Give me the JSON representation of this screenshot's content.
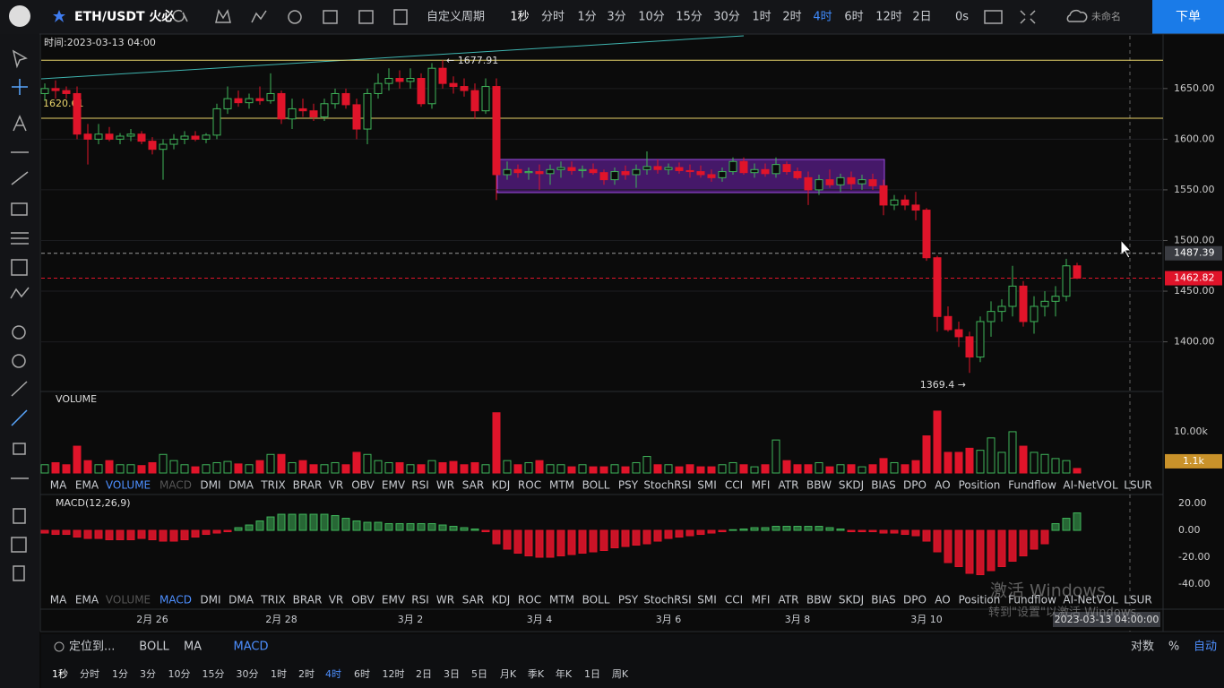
{
  "header": {
    "symbol": "ETH/USDT 火必",
    "custom": "自定义周期",
    "periods": [
      "1秒",
      "分时",
      "1分",
      "3分",
      "10分",
      "15分",
      "30分",
      "1时",
      "2时",
      "4时",
      "6时",
      "12时",
      "2日"
    ],
    "active": 9,
    "zero": "0s",
    "workspace": "未命名",
    "order": "下单"
  },
  "chart_data": {
    "type": "candlestick",
    "time_label": "时间:2023-03-13 04:00",
    "ylim": [
      1351,
      1702
    ],
    "yticks": [
      {
        "value": 1650,
        "label": "1650.00"
      },
      {
        "value": 1600,
        "label": "1600.00"
      },
      {
        "value": 1550,
        "label": "1550.00"
      },
      {
        "value": 1500,
        "label": "1500.00"
      },
      {
        "value": 1450,
        "label": "1450.00"
      },
      {
        "value": 1400,
        "label": "1400.00"
      }
    ],
    "levels": [
      {
        "value": 1677.91,
        "color": "#e8d36a"
      },
      {
        "value": 1620.61,
        "color": "#e8d36a"
      },
      {
        "value": 1487.39,
        "color": "#9a9a9a"
      },
      {
        "value": 1462.82,
        "color": "#e0142a"
      }
    ],
    "annotations": [
      {
        "value": 1677.91,
        "label": "← 1677.91"
      },
      {
        "value": 1369.4,
        "label": "1369.4 →"
      }
    ],
    "up_color": "#3fb55a",
    "down_color": "#e0142a",
    "candles": [
      [
        1645,
        1655,
        1638,
        1650
      ],
      [
        1650,
        1658,
        1640,
        1648
      ],
      [
        1648,
        1652,
        1640,
        1645
      ],
      [
        1645,
        1652,
        1600,
        1605
      ],
      [
        1605,
        1615,
        1575,
        1600
      ],
      [
        1600,
        1615,
        1595,
        1605
      ],
      [
        1605,
        1612,
        1598,
        1600
      ],
      [
        1600,
        1606,
        1595,
        1603
      ],
      [
        1603,
        1610,
        1598,
        1605
      ],
      [
        1605,
        1608,
        1595,
        1598
      ],
      [
        1598,
        1602,
        1585,
        1590
      ],
      [
        1590,
        1600,
        1560,
        1595
      ],
      [
        1595,
        1605,
        1590,
        1600
      ],
      [
        1600,
        1608,
        1595,
        1603
      ],
      [
        1603,
        1608,
        1598,
        1600
      ],
      [
        1600,
        1606,
        1596,
        1604
      ],
      [
        1604,
        1635,
        1600,
        1630
      ],
      [
        1630,
        1652,
        1625,
        1640
      ],
      [
        1640,
        1648,
        1632,
        1636
      ],
      [
        1636,
        1645,
        1630,
        1640
      ],
      [
        1640,
        1652,
        1634,
        1638
      ],
      [
        1638,
        1665,
        1635,
        1645
      ],
      [
        1645,
        1648,
        1615,
        1620
      ],
      [
        1620,
        1640,
        1610,
        1630
      ],
      [
        1630,
        1640,
        1622,
        1628
      ],
      [
        1628,
        1635,
        1618,
        1622
      ],
      [
        1622,
        1640,
        1618,
        1635
      ],
      [
        1635,
        1650,
        1630,
        1645
      ],
      [
        1645,
        1650,
        1630,
        1634
      ],
      [
        1634,
        1640,
        1600,
        1610
      ],
      [
        1610,
        1650,
        1595,
        1645
      ],
      [
        1645,
        1665,
        1640,
        1655
      ],
      [
        1655,
        1670,
        1648,
        1660
      ],
      [
        1660,
        1668,
        1650,
        1657
      ],
      [
        1657,
        1670,
        1650,
        1660
      ],
      [
        1660,
        1665,
        1632,
        1635
      ],
      [
        1635,
        1675,
        1630,
        1670
      ],
      [
        1670,
        1677.91,
        1650,
        1655
      ],
      [
        1655,
        1662,
        1645,
        1652
      ],
      [
        1652,
        1660,
        1642,
        1648
      ],
      [
        1648,
        1655,
        1620,
        1628
      ],
      [
        1628,
        1660,
        1625,
        1652
      ],
      [
        1652,
        1660,
        1540,
        1565
      ],
      [
        1565,
        1578,
        1560,
        1570
      ],
      [
        1570,
        1575,
        1562,
        1567
      ],
      [
        1567,
        1572,
        1560,
        1568
      ],
      [
        1568,
        1575,
        1550,
        1566
      ],
      [
        1566,
        1575,
        1555,
        1570
      ],
      [
        1570,
        1578,
        1562,
        1572
      ],
      [
        1572,
        1578,
        1565,
        1569
      ],
      [
        1569,
        1574,
        1562,
        1570
      ],
      [
        1570,
        1576,
        1565,
        1567
      ],
      [
        1567,
        1570,
        1555,
        1560
      ],
      [
        1560,
        1572,
        1555,
        1568
      ],
      [
        1568,
        1574,
        1560,
        1565
      ],
      [
        1565,
        1575,
        1552,
        1570
      ],
      [
        1570,
        1588,
        1565,
        1573
      ],
      [
        1573,
        1580,
        1566,
        1570
      ],
      [
        1570,
        1576,
        1565,
        1572
      ],
      [
        1572,
        1577,
        1566,
        1569
      ],
      [
        1569,
        1575,
        1562,
        1568
      ],
      [
        1568,
        1574,
        1562,
        1565
      ],
      [
        1565,
        1570,
        1558,
        1562
      ],
      [
        1562,
        1572,
        1558,
        1568
      ],
      [
        1568,
        1582,
        1565,
        1578
      ],
      [
        1578,
        1582,
        1565,
        1567
      ],
      [
        1567,
        1576,
        1562,
        1570
      ],
      [
        1570,
        1576,
        1563,
        1566
      ],
      [
        1566,
        1582,
        1562,
        1575
      ],
      [
        1575,
        1578,
        1565,
        1568
      ],
      [
        1568,
        1572,
        1560,
        1562
      ],
      [
        1562,
        1568,
        1535,
        1550
      ],
      [
        1550,
        1565,
        1545,
        1560
      ],
      [
        1560,
        1570,
        1552,
        1555
      ],
      [
        1555,
        1566,
        1548,
        1562
      ],
      [
        1562,
        1568,
        1550,
        1556
      ],
      [
        1556,
        1565,
        1550,
        1560
      ],
      [
        1560,
        1566,
        1550,
        1554
      ],
      [
        1554,
        1560,
        1525,
        1535
      ],
      [
        1535,
        1545,
        1530,
        1540
      ],
      [
        1540,
        1545,
        1530,
        1535
      ],
      [
        1535,
        1548,
        1520,
        1530
      ],
      [
        1530,
        1532,
        1480,
        1483
      ],
      [
        1483,
        1485,
        1410,
        1425
      ],
      [
        1425,
        1435,
        1410,
        1412
      ],
      [
        1412,
        1420,
        1395,
        1405
      ],
      [
        1405,
        1410,
        1369.4,
        1385
      ],
      [
        1385,
        1425,
        1380,
        1420
      ],
      [
        1420,
        1440,
        1405,
        1430
      ],
      [
        1430,
        1442,
        1420,
        1435
      ],
      [
        1435,
        1475,
        1425,
        1455
      ],
      [
        1455,
        1460,
        1415,
        1420
      ],
      [
        1420,
        1445,
        1408,
        1435
      ],
      [
        1435,
        1450,
        1425,
        1440
      ],
      [
        1440,
        1455,
        1425,
        1445
      ],
      [
        1445,
        1482,
        1440,
        1475
      ],
      [
        1475,
        1478,
        1462,
        1462.82
      ]
    ],
    "date_ticks": [
      "2月 26",
      "2月 28",
      "3月 2",
      "3月 4",
      "3月 6",
      "3月 8",
      "3月 10"
    ],
    "crosshair_label": "2023-03-13 04:00:00"
  },
  "volume": {
    "title": "VOLUME",
    "ylim": [
      0,
      19.1
    ],
    "yticks": [
      {
        "value": 10,
        "label": "10.00k"
      }
    ],
    "last_label": "1.1k",
    "values": [
      2,
      2.5,
      2,
      6.5,
      3,
      2,
      3,
      2,
      2,
      1.8,
      2.5,
      4.5,
      3,
      2,
      1.5,
      2,
      2.5,
      2.8,
      2.2,
      2,
      3,
      4.5,
      4.5,
      2.5,
      3,
      2,
      2,
      2.5,
      2,
      5,
      4.5,
      3,
      2.5,
      2.5,
      2,
      2,
      3,
      2.5,
      2.8,
      2,
      2.5,
      2,
      14.6,
      3,
      2,
      2.5,
      3,
      2,
      2,
      1.5,
      2,
      1.5,
      1.5,
      2,
      1.5,
      2.5,
      4,
      2,
      2,
      1.5,
      2,
      1.5,
      1.5,
      2,
      2.5,
      2,
      1.5,
      2,
      8,
      3,
      2,
      2,
      2.5,
      1.5,
      2,
      2,
      1.5,
      2,
      3.5,
      2.5,
      2,
      3,
      9,
      15,
      5,
      5,
      6,
      5.5,
      8.5,
      5,
      10,
      6.5,
      5,
      4.5,
      3.5,
      3,
      1.1
    ]
  },
  "macd": {
    "title": "MACD(12,26,9)",
    "ylim": [
      -44,
      24.7
    ],
    "yticks": [
      {
        "value": 20,
        "label": "20.00"
      },
      {
        "value": 0,
        "label": "0.00"
      },
      {
        "value": -20,
        "label": "-20.00"
      },
      {
        "value": -40,
        "label": "-40.00"
      }
    ],
    "values": [
      -2,
      -3,
      -3,
      -5,
      -6,
      -6,
      -7,
      -7,
      -7,
      -6,
      -7,
      -8,
      -8,
      -7,
      -5,
      -3,
      -2,
      -1,
      2,
      4,
      7,
      10,
      12,
      12,
      12,
      12,
      12,
      11,
      9,
      7,
      6,
      6,
      5,
      5,
      5,
      5,
      5,
      4,
      3,
      2,
      1,
      -1,
      -10,
      -14,
      -17,
      -19,
      -20,
      -20,
      -19,
      -18,
      -17,
      -16,
      -15,
      -13,
      -12,
      -11,
      -10,
      -8,
      -6,
      -5,
      -4,
      -3,
      -2,
      -1,
      0.5,
      1,
      2,
      2,
      3,
      3,
      3,
      3,
      3,
      2,
      1,
      -1,
      -1,
      -1,
      -2,
      -2,
      -3,
      -4,
      -8,
      -16,
      -24,
      -27,
      -32,
      -33,
      -30,
      -27,
      -23,
      -19,
      -14,
      -10,
      5,
      9,
      13
    ]
  },
  "indicators": [
    "MA",
    "EMA",
    "VOLUME",
    "MACD",
    "DMI",
    "DMA",
    "TRIX",
    "BRAR",
    "VR",
    "OBV",
    "EMV",
    "RSI",
    "WR",
    "SAR",
    "KDJ",
    "ROC",
    "MTM",
    "BOLL",
    "PSY",
    "StochRSI",
    "SMI",
    "CCI",
    "MFI",
    "ATR",
    "BBW",
    "SKDJ",
    "BIAS",
    "DPO",
    "AO",
    "Position",
    "Fundflow",
    "AI-NetVOL",
    "LSUR"
  ],
  "footer": {
    "locate": "定位到...",
    "tabs": [
      "BOLL",
      "MA",
      "MACD"
    ],
    "right": [
      "对数",
      "%",
      "自动"
    ],
    "periods": [
      "1秒",
      "分时",
      "1分",
      "3分",
      "10分",
      "15分",
      "30分",
      "1时",
      "2时",
      "4时",
      "6时",
      "12时",
      "2日",
      "3日",
      "5日",
      "月K",
      "季K",
      "年K",
      "1日",
      "周K"
    ]
  },
  "watermark": {
    "line1": "激活 Windows",
    "line2": "转到\"设置\"以激活 Windows。"
  }
}
